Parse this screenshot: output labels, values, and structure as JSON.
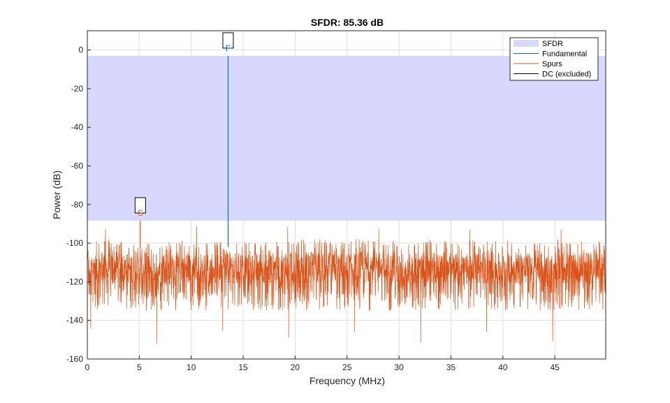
{
  "chart_data": {
    "type": "line",
    "title": "SFDR:  85.36 dB",
    "xlabel": "Frequency (MHz)",
    "ylabel": "Power (dB)",
    "xlim": [
      0,
      49.9
    ],
    "ylim": [
      -160,
      10
    ],
    "x_ticks": [
      0,
      5,
      10,
      15,
      20,
      25,
      30,
      35,
      40,
      45
    ],
    "y_ticks": [
      0,
      -20,
      -40,
      -60,
      -80,
      -100,
      -120,
      -140,
      -160
    ],
    "grid": true,
    "legend_position": "top-right",
    "sfdr_region": {
      "top": -3,
      "bottom": -88.4
    },
    "fundamental": {
      "frequency": 13.55,
      "power": -3
    },
    "spur": {
      "frequency": 5.1,
      "power": -88.4
    },
    "noise_floor": {
      "mean": -113,
      "typical_min": -135,
      "typical_max": -100,
      "lowest": -152,
      "highest": -91
    },
    "markers": [
      {
        "label": "F",
        "color": "#0072BD"
      },
      {
        "label": "S",
        "color": "#D95319"
      }
    ],
    "series": [
      {
        "name": "SFDR",
        "color": "#D8D8FF"
      },
      {
        "name": "Fundamental",
        "color": "#0072BD"
      },
      {
        "name": "Spurs",
        "color": "#D95319"
      },
      {
        "name": "DC (excluded)",
        "color": "#000000"
      }
    ]
  }
}
